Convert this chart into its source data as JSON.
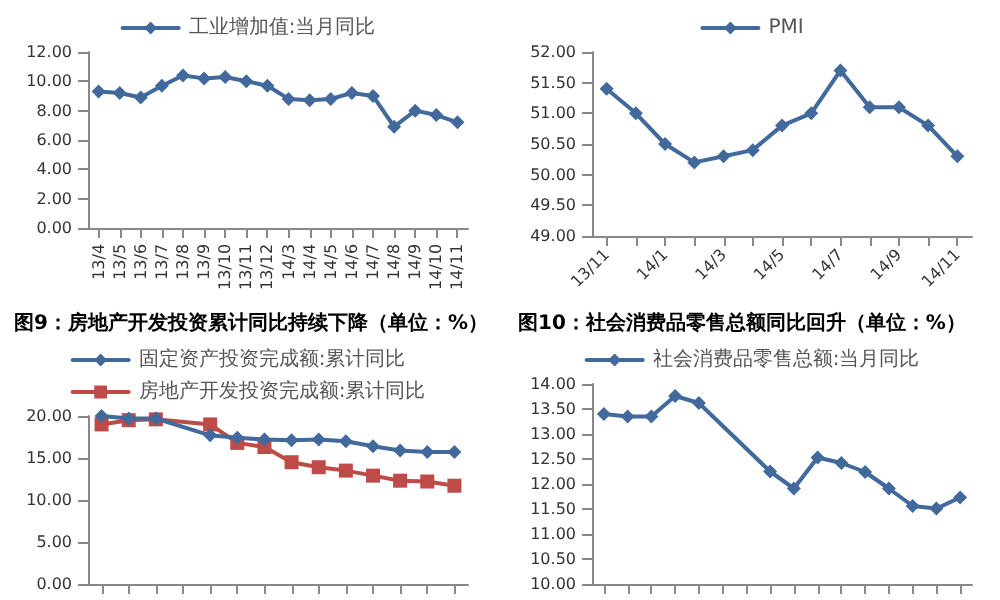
{
  "chart_data": [
    {
      "type": "line",
      "categories": [
        "13/4",
        "13/5",
        "13/6",
        "13/7",
        "13/8",
        "13/9",
        "13/10",
        "13/11",
        "13/12",
        "14/3",
        "14/4",
        "14/5",
        "14/6",
        "14/7",
        "14/8",
        "14/9",
        "14/10",
        "14/11"
      ],
      "series": [
        {
          "name": "工业增加值:当月同比",
          "color": "#41699c",
          "values": [
            9.3,
            9.2,
            8.9,
            9.7,
            10.4,
            10.2,
            10.3,
            10.0,
            9.7,
            8.8,
            8.7,
            8.8,
            9.2,
            9.0,
            6.9,
            8.0,
            7.7,
            7.2
          ]
        }
      ],
      "ylim": [
        0,
        12
      ],
      "yticks": [
        {
          "value": 0,
          "label": "0.00"
        },
        {
          "value": 2,
          "label": "2.00"
        },
        {
          "value": 4,
          "label": "4.00"
        },
        {
          "value": 6,
          "label": "6.00"
        },
        {
          "value": 8,
          "label": "8.00"
        },
        {
          "value": 10,
          "label": "10.00"
        },
        {
          "value": 12,
          "label": "12.00"
        }
      ],
      "legend": "top",
      "marker": "diamond"
    },
    {
      "type": "line",
      "categories": [
        "13/11",
        null,
        "14/1",
        null,
        "14/3",
        null,
        "14/5",
        null,
        "14/7",
        null,
        "14/9",
        null,
        "14/11"
      ],
      "series": [
        {
          "name": "PMI",
          "color": "#41699c",
          "values": [
            51.4,
            51.0,
            50.5,
            50.2,
            50.3,
            50.4,
            50.8,
            51.0,
            51.7,
            51.1,
            51.1,
            50.8,
            50.3
          ]
        }
      ],
      "ylim": [
        49,
        52
      ],
      "yticks": [
        {
          "value": 49,
          "label": "49.00"
        },
        {
          "value": 49.5,
          "label": "49.50"
        },
        {
          "value": 50,
          "label": "50.00"
        },
        {
          "value": 50.5,
          "label": "50.50"
        },
        {
          "value": 51,
          "label": "51.00"
        },
        {
          "value": 51.5,
          "label": "51.50"
        },
        {
          "value": 52,
          "label": "52.00"
        }
      ],
      "legend": "top",
      "marker": "diamond"
    },
    {
      "type": "line",
      "title": "图9：房地产开发投资累计同比持续下降（单位：%）",
      "categories": [
        null,
        null,
        null,
        null,
        null,
        null,
        null,
        null,
        null,
        null,
        null,
        null,
        null,
        null
      ],
      "series": [
        {
          "name": "固定资产投资完成额:累计同比",
          "color": "#41699c",
          "marker": "diamond",
          "values": [
            20.0,
            19.7,
            19.7,
            null,
            17.7,
            17.4,
            17.2,
            17.1,
            17.2,
            17.0,
            16.4,
            15.9,
            15.7,
            15.7
          ]
        },
        {
          "name": "房地产开发投资完成额:累计同比",
          "color": "#be4b48",
          "marker": "square",
          "values": [
            19.0,
            19.5,
            19.6,
            null,
            19.0,
            16.8,
            16.3,
            14.5,
            13.9,
            13.5,
            12.9,
            12.3,
            12.2,
            11.7
          ]
        }
      ],
      "ylim": [
        0,
        20
      ],
      "yticks": [
        {
          "value": 0,
          "label": "0.00"
        },
        {
          "value": 5,
          "label": "5.00"
        },
        {
          "value": 10,
          "label": "10.00"
        },
        {
          "value": 15,
          "label": "15.00"
        },
        {
          "value": 20,
          "label": "20.00"
        }
      ],
      "legend": "top",
      "tick_labels": "y"
    },
    {
      "type": "line",
      "title": "图10：社会消费品零售总额同比回升（单位：%）",
      "categories": [
        null,
        null,
        null,
        null,
        null,
        null,
        null,
        null,
        null,
        null,
        null,
        null,
        null,
        null,
        null,
        null
      ],
      "series": [
        {
          "name": "社会消费品零售总额:当月同比",
          "color": "#41699c",
          "values": [
            13.4,
            13.35,
            13.35,
            13.76,
            13.62,
            null,
            null,
            12.25,
            11.91,
            12.53,
            12.42,
            12.24,
            11.91,
            11.56,
            11.51,
            11.73
          ]
        }
      ],
      "ylim": [
        10,
        14
      ],
      "yticks": [
        {
          "value": 10,
          "label": "10.00"
        },
        {
          "value": 10.5,
          "label": "10.50"
        },
        {
          "value": 11,
          "label": "11.00"
        },
        {
          "value": 11.5,
          "label": "11.50"
        },
        {
          "value": 12,
          "label": "12.00"
        },
        {
          "value": 12.5,
          "label": "12.50"
        },
        {
          "value": 13,
          "label": "13.00"
        },
        {
          "value": 13.5,
          "label": "13.50"
        },
        {
          "value": 14,
          "label": "14.00"
        }
      ],
      "legend": "top",
      "marker": "diamond",
      "tick_labels": "y"
    }
  ]
}
